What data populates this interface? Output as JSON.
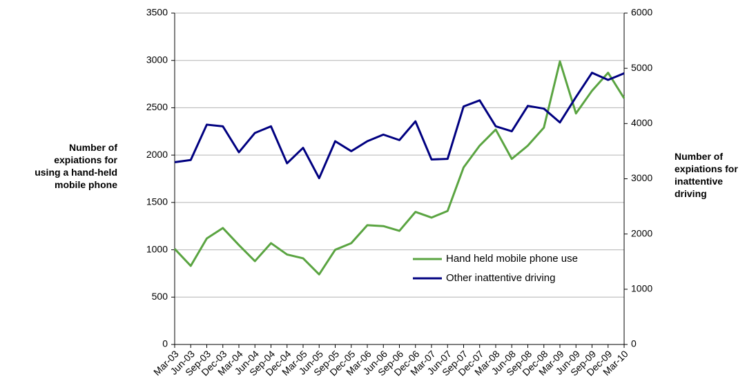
{
  "chart_data": {
    "type": "line",
    "ylabel": "Number of expiations for using a hand-held mobile phone",
    "y2label": "Number of expiations for inattentive driving",
    "categories": [
      "Mar-03",
      "Jun-03",
      "Sep-03",
      "Dec-03",
      "Mar-04",
      "Jun-04",
      "Sep-04",
      "Dec-04",
      "Mar-05",
      "Jun-05",
      "Sep-05",
      "Dec-05",
      "Mar-06",
      "Jun-06",
      "Sep-06",
      "Dec-06",
      "Mar-07",
      "Jun-07",
      "Sep-07",
      "Dec-07",
      "Mar-08",
      "Jun-08",
      "Sep-08",
      "Dec-08",
      "Mar-09",
      "Jun-09",
      "Sep-09",
      "Dec-09",
      "Mar-10"
    ],
    "series": [
      {
        "name": "Hand held mobile phone use",
        "color": "#5aa441",
        "values": [
          1010,
          830,
          1120,
          1230,
          1050,
          880,
          1070,
          950,
          910,
          740,
          1000,
          1070,
          1260,
          1250,
          1200,
          1400,
          1340,
          1410,
          1870,
          2100,
          2270,
          1960,
          2100,
          2290,
          2990,
          2440,
          2680,
          2870,
          2600
        ]
      },
      {
        "name": "Other inattentive driving",
        "color": "#000080",
        "axis": "y2",
        "values": [
          3300,
          3340,
          3980,
          3950,
          3480,
          3830,
          3950,
          3280,
          3560,
          3010,
          3680,
          3500,
          3680,
          3800,
          3700,
          4040,
          3350,
          3360,
          4310,
          4420,
          3950,
          3860,
          4320,
          4270,
          4020,
          4480,
          4920,
          4790,
          4910
        ]
      }
    ],
    "ylim": [
      0,
      3500
    ],
    "yticks": [
      0,
      500,
      1000,
      1500,
      2000,
      2500,
      3000,
      3500
    ],
    "y2lim": [
      0,
      6000
    ],
    "y2ticks": [
      0,
      1000,
      2000,
      3000,
      4000,
      5000,
      6000
    ],
    "grid": true,
    "legend": "lower right"
  }
}
